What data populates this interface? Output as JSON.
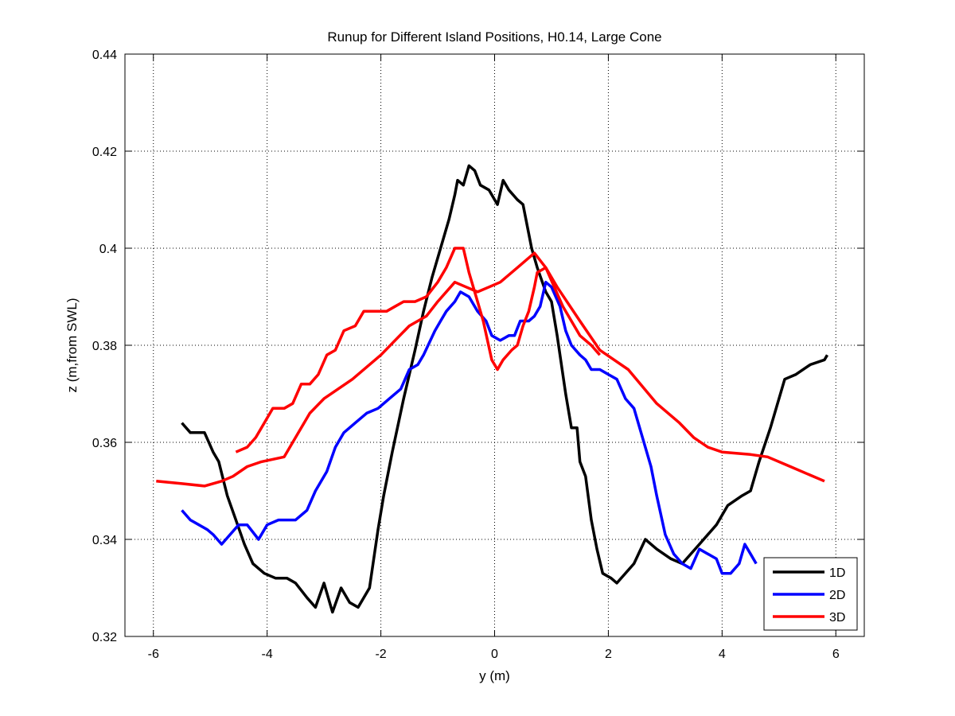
{
  "chart_data": {
    "type": "line",
    "title": "Runup for Different Island Positions, H0.14, Large Cone",
    "xlabel": "y (m)",
    "ylabel": "z (m,from SWL)",
    "xlim": [
      -6.5,
      6.5
    ],
    "ylim": [
      0.32,
      0.44
    ],
    "xticks": [
      -6,
      -4,
      -2,
      0,
      2,
      4,
      6
    ],
    "yticks": [
      0.32,
      0.34,
      0.36,
      0.38,
      0.4,
      0.42,
      0.44
    ],
    "xtick_labels": [
      "-6",
      "-4",
      "-2",
      "0",
      "2",
      "4",
      "6"
    ],
    "ytick_labels": [
      "0.32",
      "0.34",
      "0.36",
      "0.38",
      "0.4",
      "0.42",
      "0.44"
    ],
    "grid": true,
    "grid_style": "dotted",
    "legend_position": "bottom-right",
    "series": [
      {
        "name": "1D",
        "color": "#000000",
        "points": [
          [
            -5.5,
            0.364
          ],
          [
            -5.35,
            0.362
          ],
          [
            -5.2,
            0.362
          ],
          [
            -5.1,
            0.362
          ],
          [
            -4.95,
            0.358
          ],
          [
            -4.85,
            0.356
          ],
          [
            -4.7,
            0.349
          ],
          [
            -4.55,
            0.344
          ],
          [
            -4.4,
            0.339
          ],
          [
            -4.25,
            0.335
          ],
          [
            -4.05,
            0.333
          ],
          [
            -3.85,
            0.332
          ],
          [
            -3.65,
            0.332
          ],
          [
            -3.5,
            0.331
          ],
          [
            -3.3,
            0.328
          ],
          [
            -3.15,
            0.326
          ],
          [
            -3.0,
            0.331
          ],
          [
            -2.85,
            0.325
          ],
          [
            -2.7,
            0.33
          ],
          [
            -2.55,
            0.327
          ],
          [
            -2.4,
            0.326
          ],
          [
            -2.2,
            0.33
          ],
          [
            -2.05,
            0.342
          ],
          [
            -1.95,
            0.349
          ],
          [
            -1.8,
            0.358
          ],
          [
            -1.6,
            0.369
          ],
          [
            -1.4,
            0.379
          ],
          [
            -1.25,
            0.387
          ],
          [
            -1.1,
            0.394
          ],
          [
            -0.95,
            0.4
          ],
          [
            -0.8,
            0.406
          ],
          [
            -0.7,
            0.411
          ],
          [
            -0.65,
            0.414
          ],
          [
            -0.55,
            0.413
          ],
          [
            -0.45,
            0.417
          ],
          [
            -0.35,
            0.416
          ],
          [
            -0.25,
            0.413
          ],
          [
            -0.1,
            0.412
          ],
          [
            0.0,
            0.41
          ],
          [
            0.05,
            0.409
          ],
          [
            0.15,
            0.414
          ],
          [
            0.25,
            0.412
          ],
          [
            0.4,
            0.41
          ],
          [
            0.5,
            0.409
          ],
          [
            0.65,
            0.4
          ],
          [
            0.75,
            0.396
          ],
          [
            0.9,
            0.391
          ],
          [
            1.0,
            0.389
          ],
          [
            1.1,
            0.382
          ],
          [
            1.25,
            0.37
          ],
          [
            1.35,
            0.363
          ],
          [
            1.45,
            0.363
          ],
          [
            1.5,
            0.356
          ],
          [
            1.6,
            0.353
          ],
          [
            1.7,
            0.344
          ],
          [
            1.8,
            0.338
          ],
          [
            1.9,
            0.333
          ],
          [
            2.05,
            0.332
          ],
          [
            2.15,
            0.331
          ],
          [
            2.45,
            0.335
          ],
          [
            2.65,
            0.34
          ],
          [
            2.85,
            0.338
          ],
          [
            3.1,
            0.336
          ],
          [
            3.3,
            0.335
          ],
          [
            3.6,
            0.339
          ],
          [
            3.9,
            0.343
          ],
          [
            4.1,
            0.347
          ],
          [
            4.35,
            0.349
          ],
          [
            4.5,
            0.35
          ],
          [
            4.65,
            0.356
          ],
          [
            4.85,
            0.363
          ],
          [
            5.1,
            0.373
          ],
          [
            5.3,
            0.374
          ],
          [
            5.55,
            0.376
          ],
          [
            5.8,
            0.377
          ],
          [
            5.85,
            0.378
          ]
        ]
      },
      {
        "name": "2D",
        "color": "#0000ff",
        "points": [
          [
            -5.5,
            0.346
          ],
          [
            -5.35,
            0.344
          ],
          [
            -5.2,
            0.343
          ],
          [
            -5.05,
            0.342
          ],
          [
            -4.95,
            0.341
          ],
          [
            -4.8,
            0.339
          ],
          [
            -4.65,
            0.341
          ],
          [
            -4.5,
            0.343
          ],
          [
            -4.35,
            0.343
          ],
          [
            -4.15,
            0.34
          ],
          [
            -4.0,
            0.343
          ],
          [
            -3.8,
            0.344
          ],
          [
            -3.65,
            0.344
          ],
          [
            -3.5,
            0.344
          ],
          [
            -3.3,
            0.346
          ],
          [
            -3.15,
            0.35
          ],
          [
            -2.95,
            0.354
          ],
          [
            -2.8,
            0.359
          ],
          [
            -2.65,
            0.362
          ],
          [
            -2.45,
            0.364
          ],
          [
            -2.25,
            0.366
          ],
          [
            -2.05,
            0.367
          ],
          [
            -1.85,
            0.369
          ],
          [
            -1.65,
            0.371
          ],
          [
            -1.5,
            0.375
          ],
          [
            -1.35,
            0.376
          ],
          [
            -1.25,
            0.378
          ],
          [
            -1.05,
            0.383
          ],
          [
            -0.95,
            0.385
          ],
          [
            -0.85,
            0.387
          ],
          [
            -0.7,
            0.389
          ],
          [
            -0.6,
            0.391
          ],
          [
            -0.45,
            0.39
          ],
          [
            -0.3,
            0.387
          ],
          [
            -0.15,
            0.385
          ],
          [
            -0.05,
            0.382
          ],
          [
            0.1,
            0.381
          ],
          [
            0.25,
            0.382
          ],
          [
            0.35,
            0.382
          ],
          [
            0.45,
            0.385
          ],
          [
            0.6,
            0.385
          ],
          [
            0.7,
            0.386
          ],
          [
            0.8,
            0.388
          ],
          [
            0.9,
            0.393
          ],
          [
            1.0,
            0.392
          ],
          [
            1.15,
            0.388
          ],
          [
            1.25,
            0.383
          ],
          [
            1.35,
            0.38
          ],
          [
            1.5,
            0.378
          ],
          [
            1.6,
            0.377
          ],
          [
            1.7,
            0.375
          ],
          [
            1.85,
            0.375
          ],
          [
            2.0,
            0.374
          ],
          [
            2.15,
            0.373
          ],
          [
            2.3,
            0.369
          ],
          [
            2.45,
            0.367
          ],
          [
            2.6,
            0.361
          ],
          [
            2.75,
            0.355
          ],
          [
            2.85,
            0.349
          ],
          [
            3.0,
            0.341
          ],
          [
            3.15,
            0.337
          ],
          [
            3.3,
            0.335
          ],
          [
            3.45,
            0.334
          ],
          [
            3.6,
            0.338
          ],
          [
            3.75,
            0.337
          ],
          [
            3.9,
            0.336
          ],
          [
            4.0,
            0.333
          ],
          [
            4.15,
            0.333
          ],
          [
            4.3,
            0.335
          ],
          [
            4.4,
            0.339
          ],
          [
            4.5,
            0.337
          ],
          [
            4.6,
            0.335
          ]
        ]
      },
      {
        "name": "3D",
        "color": "#ff0000",
        "points": [
          [
            -4.55,
            0.358
          ],
          [
            -4.35,
            0.359
          ],
          [
            -4.2,
            0.361
          ],
          [
            -4.05,
            0.364
          ],
          [
            -3.9,
            0.367
          ],
          [
            -3.7,
            0.367
          ],
          [
            -3.55,
            0.368
          ],
          [
            -3.4,
            0.372
          ],
          [
            -3.25,
            0.372
          ],
          [
            -3.1,
            0.374
          ],
          [
            -2.95,
            0.378
          ],
          [
            -2.8,
            0.379
          ],
          [
            -2.65,
            0.383
          ],
          [
            -2.45,
            0.384
          ],
          [
            -2.3,
            0.387
          ],
          [
            -2.1,
            0.387
          ],
          [
            -1.9,
            0.387
          ],
          [
            -1.75,
            0.388
          ],
          [
            -1.6,
            0.389
          ],
          [
            -1.4,
            0.389
          ],
          [
            -1.2,
            0.39
          ],
          [
            -1.0,
            0.393
          ],
          [
            -0.85,
            0.396
          ],
          [
            -0.7,
            0.4
          ],
          [
            -0.55,
            0.4
          ],
          [
            -0.45,
            0.395
          ],
          [
            -0.3,
            0.389
          ],
          [
            -0.2,
            0.385
          ],
          [
            -0.05,
            0.377
          ],
          [
            0.05,
            0.375
          ],
          [
            0.15,
            0.377
          ],
          [
            0.3,
            0.379
          ],
          [
            0.4,
            0.38
          ],
          [
            0.5,
            0.384
          ],
          [
            0.6,
            0.387
          ],
          [
            0.7,
            0.392
          ],
          [
            0.75,
            0.395
          ],
          [
            0.9,
            0.396
          ],
          [
            1.05,
            0.392
          ],
          [
            1.2,
            0.388
          ],
          [
            1.35,
            0.385
          ],
          [
            1.5,
            0.382
          ],
          [
            1.7,
            0.38
          ],
          [
            1.85,
            0.378
          ]
        ]
      },
      {
        "name": "3D",
        "color": "#ff0000",
        "points": [
          [
            -5.95,
            0.352
          ],
          [
            -5.5,
            0.3515
          ],
          [
            -5.1,
            0.351
          ],
          [
            -4.8,
            0.352
          ],
          [
            -4.6,
            0.353
          ],
          [
            -4.35,
            0.355
          ],
          [
            -4.1,
            0.356
          ],
          [
            -3.7,
            0.357
          ],
          [
            -3.5,
            0.361
          ],
          [
            -3.25,
            0.366
          ],
          [
            -3.0,
            0.369
          ],
          [
            -2.5,
            0.373
          ],
          [
            -2.0,
            0.378
          ],
          [
            -1.5,
            0.384
          ],
          [
            -1.2,
            0.386
          ],
          [
            -1.0,
            0.389
          ],
          [
            -0.7,
            0.393
          ],
          [
            -0.5,
            0.392
          ],
          [
            -0.3,
            0.391
          ],
          [
            -0.1,
            0.392
          ],
          [
            0.1,
            0.393
          ],
          [
            0.4,
            0.396
          ],
          [
            0.7,
            0.399
          ],
          [
            0.9,
            0.396
          ],
          [
            1.1,
            0.392
          ],
          [
            1.5,
            0.385
          ],
          [
            1.85,
            0.379
          ],
          [
            2.1,
            0.377
          ],
          [
            2.35,
            0.375
          ],
          [
            2.85,
            0.368
          ],
          [
            3.25,
            0.364
          ],
          [
            3.5,
            0.361
          ],
          [
            3.75,
            0.359
          ],
          [
            4.0,
            0.358
          ],
          [
            4.5,
            0.3575
          ],
          [
            4.8,
            0.357
          ],
          [
            5.2,
            0.355
          ],
          [
            5.5,
            0.3535
          ],
          [
            5.8,
            0.352
          ]
        ]
      }
    ],
    "legend": [
      {
        "label": "1D",
        "color": "#000000"
      },
      {
        "label": "2D",
        "color": "#0000ff"
      },
      {
        "label": "3D",
        "color": "#ff0000"
      }
    ]
  }
}
